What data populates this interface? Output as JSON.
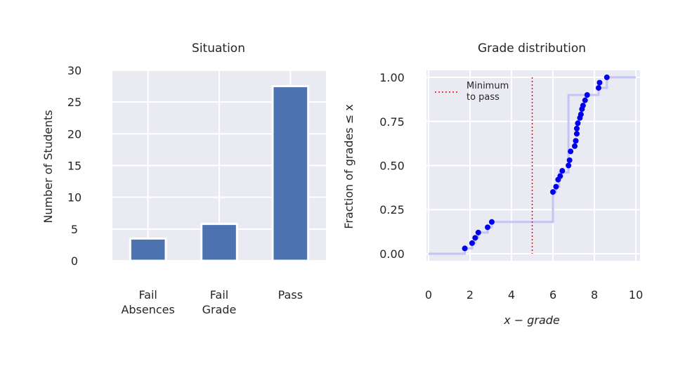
{
  "chart_data": [
    {
      "type": "bar",
      "title": "Situation",
      "ylabel": "Number of Students",
      "xlabel": "",
      "categories": [
        [
          "Fail",
          "Absences"
        ],
        [
          "Fail",
          "Grade"
        ],
        [
          "Pass"
        ]
      ],
      "values": [
        3.5,
        5.8,
        27.5
      ],
      "ylim": [
        0,
        30
      ],
      "yticks": [
        0,
        5,
        10,
        15,
        20,
        25,
        30
      ],
      "grid": true,
      "bar_color": "#4c72b0",
      "background": "#eaeaf2"
    },
    {
      "type": "scatter",
      "title": "Grade distribution",
      "xlabel": "x − grade",
      "ylabel": "Fraction of grades ≤ x",
      "xlim": [
        -0.1,
        10.2
      ],
      "ylim": [
        -0.04,
        1.04
      ],
      "xticks": [
        0,
        2,
        4,
        6,
        8,
        10
      ],
      "yticks": [
        0.0,
        0.25,
        0.5,
        0.75,
        1.0
      ],
      "ytick_labels": [
        "0.00",
        "0.25",
        "0.50",
        "0.75",
        "1.00"
      ],
      "grid": true,
      "background": "#eaeaf2",
      "threshold": {
        "x": 5.0,
        "label": "Minimum to pass",
        "color": "#ff0000"
      },
      "legend": {
        "placement": "top-left",
        "label_lines": [
          "Minimum",
          "to pass"
        ]
      },
      "step_color": "#c4c4f5",
      "point_color": "#0000ee",
      "step": [
        [
          0.0,
          0.0
        ],
        [
          1.75,
          0.0
        ],
        [
          1.75,
          0.03
        ],
        [
          2.1,
          0.03
        ],
        [
          2.1,
          0.06
        ],
        [
          2.25,
          0.06
        ],
        [
          2.25,
          0.09
        ],
        [
          2.4,
          0.09
        ],
        [
          2.4,
          0.12
        ],
        [
          2.85,
          0.12
        ],
        [
          2.85,
          0.15
        ],
        [
          3.05,
          0.15
        ],
        [
          3.05,
          0.18
        ],
        [
          6.0,
          0.18
        ],
        [
          6.0,
          0.35
        ],
        [
          6.15,
          0.35
        ],
        [
          6.15,
          0.38
        ],
        [
          6.3,
          0.38
        ],
        [
          6.3,
          0.46
        ],
        [
          6.75,
          0.46
        ],
        [
          6.75,
          0.9
        ],
        [
          8.2,
          0.9
        ],
        [
          8.2,
          0.94
        ],
        [
          8.6,
          0.94
        ],
        [
          8.6,
          1.0
        ],
        [
          10.0,
          1.0
        ]
      ],
      "points": [
        {
          "x": 1.75,
          "y": 0.03
        },
        {
          "x": 2.1,
          "y": 0.06
        },
        {
          "x": 2.25,
          "y": 0.09
        },
        {
          "x": 2.4,
          "y": 0.12
        },
        {
          "x": 2.85,
          "y": 0.15
        },
        {
          "x": 3.05,
          "y": 0.18
        },
        {
          "x": 6.0,
          "y": 0.35
        },
        {
          "x": 6.15,
          "y": 0.38
        },
        {
          "x": 6.25,
          "y": 0.42
        },
        {
          "x": 6.35,
          "y": 0.44
        },
        {
          "x": 6.45,
          "y": 0.47
        },
        {
          "x": 6.75,
          "y": 0.5
        },
        {
          "x": 6.8,
          "y": 0.53
        },
        {
          "x": 6.85,
          "y": 0.58
        },
        {
          "x": 7.05,
          "y": 0.61
        },
        {
          "x": 7.1,
          "y": 0.64
        },
        {
          "x": 7.15,
          "y": 0.68
        },
        {
          "x": 7.15,
          "y": 0.71
        },
        {
          "x": 7.2,
          "y": 0.74
        },
        {
          "x": 7.3,
          "y": 0.77
        },
        {
          "x": 7.35,
          "y": 0.79
        },
        {
          "x": 7.4,
          "y": 0.82
        },
        {
          "x": 7.45,
          "y": 0.84
        },
        {
          "x": 7.55,
          "y": 0.87
        },
        {
          "x": 7.65,
          "y": 0.9
        },
        {
          "x": 8.2,
          "y": 0.94
        },
        {
          "x": 8.25,
          "y": 0.97
        },
        {
          "x": 8.6,
          "y": 1.0
        }
      ]
    }
  ]
}
